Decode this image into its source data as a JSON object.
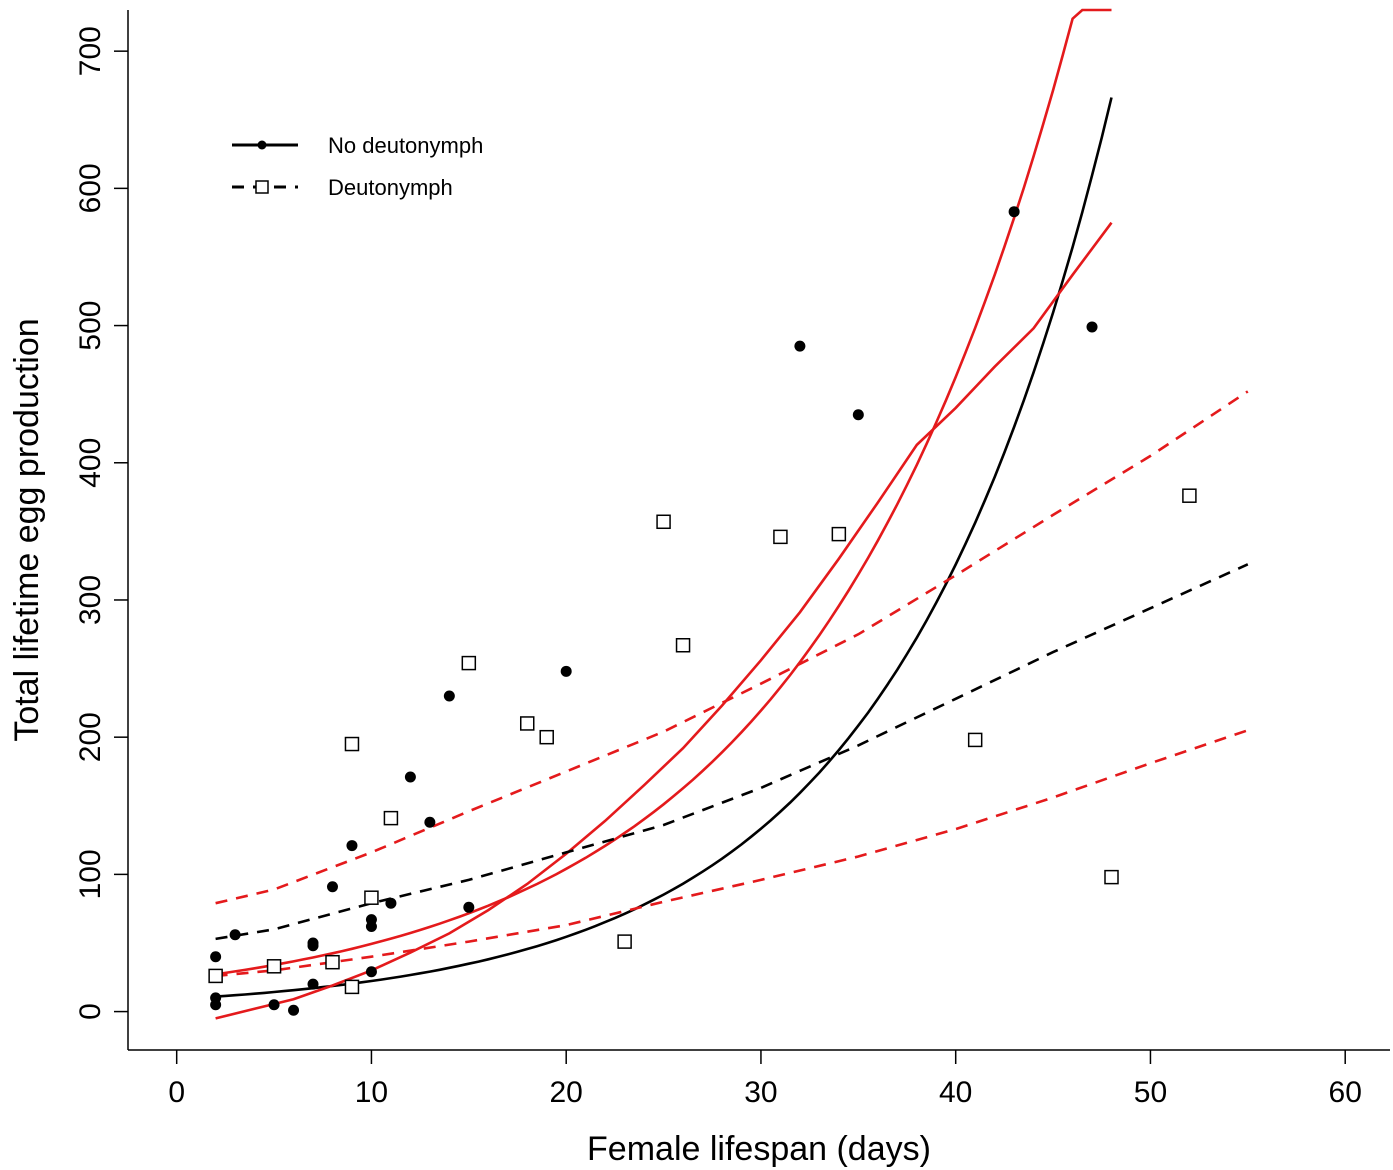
{
  "chart_data": {
    "type": "scatter",
    "title": "",
    "xlabel": "Female lifespan (days)",
    "ylabel": "Total lifetime egg production",
    "xlim": [
      -2.5,
      62.3
    ],
    "ylim": [
      -28,
      730
    ],
    "x_ticks": [
      0,
      10,
      20,
      30,
      40,
      50,
      60
    ],
    "y_ticks": [
      0,
      100,
      200,
      300,
      400,
      500,
      600,
      700
    ],
    "grid": false,
    "legend_position": "top-left",
    "legend": [
      {
        "label": "No deutonymph",
        "line": "solid",
        "marker": "filled-circle"
      },
      {
        "label": "Deutonymph",
        "line": "dashed",
        "marker": "open-square"
      }
    ],
    "series": [
      {
        "name": "No deutonymph",
        "marker": "filled-circle",
        "color": "#000000",
        "points": [
          [
            2,
            40
          ],
          [
            2,
            10
          ],
          [
            2,
            5
          ],
          [
            3,
            56
          ],
          [
            5,
            5
          ],
          [
            6,
            1
          ],
          [
            7,
            50
          ],
          [
            7,
            48
          ],
          [
            7,
            20
          ],
          [
            8,
            91
          ],
          [
            9,
            121
          ],
          [
            10,
            67
          ],
          [
            10,
            62
          ],
          [
            10,
            29
          ],
          [
            11,
            79
          ],
          [
            12,
            171
          ],
          [
            13,
            138
          ],
          [
            14,
            230
          ],
          [
            15,
            76
          ],
          [
            20,
            248
          ],
          [
            32,
            485
          ],
          [
            35,
            435
          ],
          [
            43,
            583
          ],
          [
            47,
            499
          ]
        ]
      },
      {
        "name": "Deutonymph",
        "marker": "open-square",
        "color": "#000000",
        "points": [
          [
            2,
            26
          ],
          [
            5,
            33
          ],
          [
            8,
            36
          ],
          [
            9,
            195
          ],
          [
            9,
            18
          ],
          [
            10,
            83
          ],
          [
            11,
            141
          ],
          [
            15,
            254
          ],
          [
            18,
            210
          ],
          [
            19,
            200
          ],
          [
            23,
            51
          ],
          [
            25,
            357
          ],
          [
            26,
            267
          ],
          [
            31,
            346
          ],
          [
            34,
            348
          ],
          [
            41,
            198
          ],
          [
            48,
            98
          ],
          [
            52,
            376
          ]
        ]
      }
    ],
    "fitted_curves": [
      {
        "series": "No deutonymph",
        "kind": "fit",
        "line": "solid",
        "color": "#000000",
        "x_range": [
          2,
          48
        ],
        "a": 9.12,
        "b": 0.0894,
        "pow": 0.5
      },
      {
        "series": "No deutonymph",
        "kind": "upper-ci",
        "line": "solid",
        "color": "#e41a1c",
        "x_range": [
          2,
          48
        ],
        "a": 23.4,
        "b": 0.0746,
        "pow": 0.5
      },
      {
        "series": "No deutonymph",
        "kind": "lower-ci",
        "line": "solid",
        "color": "#e41a1c",
        "x_range": [
          2,
          48
        ],
        "a": 0,
        "b": 0.0,
        "pow": 0.5,
        "values": [
          [
            2,
            -5
          ],
          [
            4,
            2
          ],
          [
            6,
            9
          ],
          [
            8,
            19
          ],
          [
            10,
            30
          ],
          [
            12,
            43
          ],
          [
            14,
            57
          ],
          [
            16,
            74
          ],
          [
            18,
            93
          ],
          [
            20,
            115
          ],
          [
            22,
            139
          ],
          [
            24,
            165
          ],
          [
            26,
            192
          ],
          [
            28,
            223
          ],
          [
            30,
            256
          ],
          [
            32,
            291
          ],
          [
            34,
            330
          ],
          [
            36,
            371
          ],
          [
            38,
            413
          ],
          [
            40,
            440
          ],
          [
            42,
            470
          ],
          [
            44,
            498
          ],
          [
            46,
            537
          ],
          [
            48,
            575
          ]
        ]
      },
      {
        "series": "Deutonymph",
        "kind": "fit",
        "line": "dashed",
        "color": "#000000",
        "x_range": [
          2,
          55
        ],
        "values": [
          [
            2,
            53
          ],
          [
            5,
            60
          ],
          [
            10,
            79
          ],
          [
            15,
            96
          ],
          [
            20,
            116
          ],
          [
            25,
            136
          ],
          [
            30,
            163
          ],
          [
            35,
            194
          ],
          [
            40,
            228
          ],
          [
            45,
            262
          ],
          [
            50,
            294
          ],
          [
            55,
            326
          ]
        ]
      },
      {
        "series": "Deutonymph",
        "kind": "upper-ci",
        "line": "dashed",
        "color": "#e41a1c",
        "x_range": [
          2,
          55
        ],
        "values": [
          [
            2,
            79
          ],
          [
            5,
            89
          ],
          [
            10,
            116
          ],
          [
            15,
            146
          ],
          [
            20,
            175
          ],
          [
            25,
            204
          ],
          [
            30,
            239
          ],
          [
            35,
            275
          ],
          [
            40,
            318
          ],
          [
            45,
            362
          ],
          [
            50,
            405
          ],
          [
            55,
            452
          ]
        ]
      },
      {
        "series": "Deutonymph",
        "kind": "lower-ci",
        "line": "dashed",
        "color": "#e41a1c",
        "x_range": [
          2,
          55
        ],
        "values": [
          [
            2,
            26
          ],
          [
            5,
            30
          ],
          [
            10,
            40
          ],
          [
            15,
            51
          ],
          [
            20,
            63
          ],
          [
            25,
            80
          ],
          [
            30,
            96
          ],
          [
            35,
            113
          ],
          [
            40,
            133
          ],
          [
            45,
            156
          ],
          [
            50,
            181
          ],
          [
            55,
            205
          ]
        ]
      }
    ]
  }
}
